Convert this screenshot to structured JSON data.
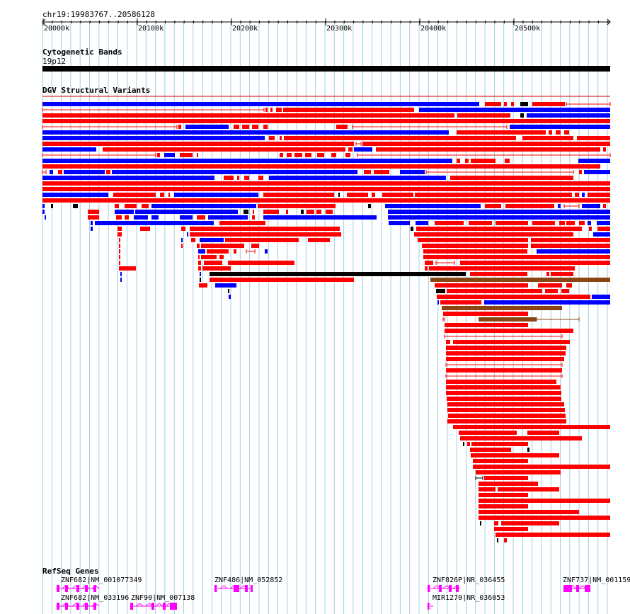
{
  "ruler": {
    "locus": "chr19:19983767..20586128",
    "ticks": [
      "20000k",
      "20100k",
      "20200k",
      "20300k",
      "20400k",
      "20500k"
    ]
  },
  "tracks": {
    "cytoband": {
      "title": "Cytogenetic Bands",
      "band": "19p12"
    },
    "dgv": {
      "title": "DGV Structural Variants"
    },
    "refseq": {
      "title": "RefSeq Genes",
      "genes": [
        "ZNF682|NM_001077349",
        "ZNF682|NM_033196",
        "ZNF90|NM_007138",
        "ZNF486|NM_052852",
        "ZNF826P|NR_036455",
        "MIR1270|NR_036053",
        "ZNF737|NM_001159"
      ]
    }
  },
  "colors": {
    "loss": "#0000ff",
    "gain": "#ff0000",
    "complex": "#000000",
    "inversion": "#8b4513",
    "gene": "#ff00ff",
    "grid": "#9ecfe6"
  }
}
